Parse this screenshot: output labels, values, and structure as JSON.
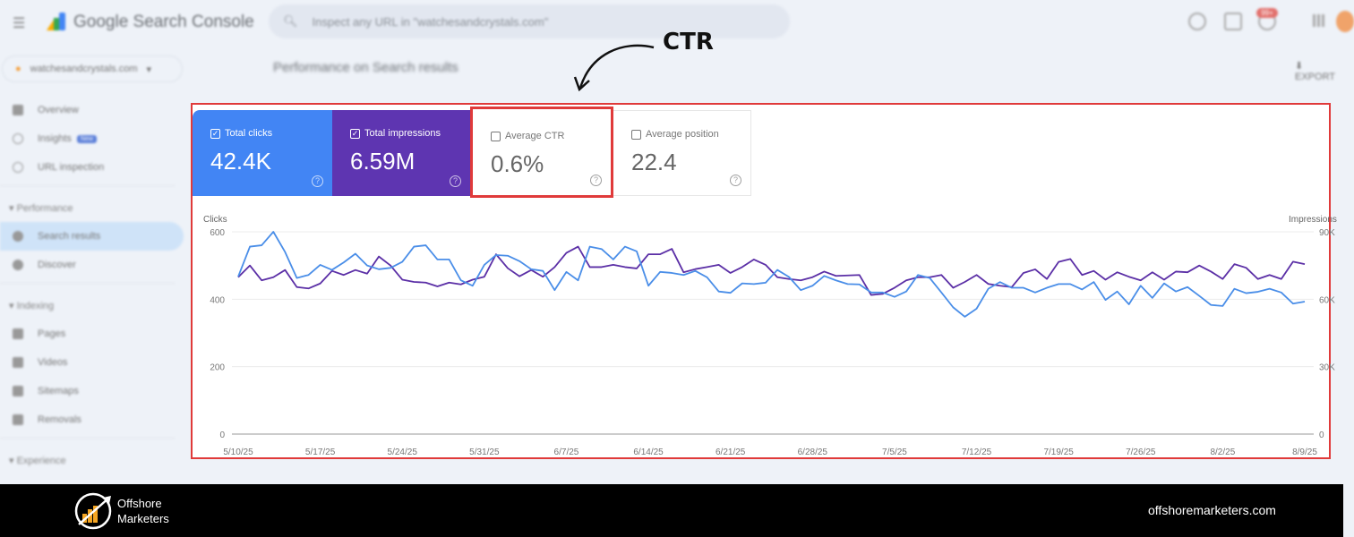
{
  "header": {
    "app_title": "Google Search Console",
    "search_placeholder": "Inspect any URL in \"watchesandcrystals.com\"",
    "notification_count": "99+"
  },
  "property": {
    "name": "watchesandcrystals.com"
  },
  "sidebar": {
    "items": [
      {
        "label": "Overview",
        "icon": "home-icon"
      },
      {
        "label": "Insights",
        "icon": "lightbulb-icon",
        "tag": "New"
      },
      {
        "label": "URL inspection",
        "icon": "search-icon"
      }
    ],
    "performance": {
      "title": "Performance",
      "items": [
        {
          "label": "Search results",
          "icon": "google-icon",
          "active": true
        },
        {
          "label": "Discover",
          "icon": "asterisk-icon"
        }
      ]
    },
    "indexing": {
      "title": "Indexing",
      "items": [
        {
          "label": "Pages",
          "icon": "pages-icon"
        },
        {
          "label": "Videos",
          "icon": "video-icon"
        },
        {
          "label": "Sitemaps",
          "icon": "sitemap-icon"
        },
        {
          "label": "Removals",
          "icon": "eye-off-icon"
        }
      ]
    },
    "experience": {
      "title": "Experience"
    }
  },
  "page": {
    "title": "Performance on Search results",
    "export_label": "EXPORT"
  },
  "metrics": [
    {
      "label": "Total clicks",
      "value": "42.4K",
      "checked": true,
      "color": "#4285f4"
    },
    {
      "label": "Total impressions",
      "value": "6.59M",
      "checked": true,
      "color": "#5e35b1"
    },
    {
      "label": "Average CTR",
      "value": "0.6%",
      "checked": false
    },
    {
      "label": "Average position",
      "value": "22.4",
      "checked": false
    }
  ],
  "annotation": {
    "text": "CTR",
    "highlight_color": "#e03a3a"
  },
  "chart_data": {
    "type": "line",
    "left_axis_label": "Clicks",
    "right_axis_label": "Impressions",
    "left_ylim": [
      0,
      600
    ],
    "left_ticks": [
      "0",
      "200",
      "400",
      "600"
    ],
    "right_ylim": [
      0,
      90000
    ],
    "right_ticks": [
      "0",
      "30K",
      "60K",
      "90K"
    ],
    "x_start": "5/10/25",
    "x_end": "8/9/25",
    "x_ticks": [
      "5/10/25",
      "5/17/25",
      "5/24/25",
      "5/31/25",
      "6/7/25",
      "6/14/25",
      "6/21/25",
      "6/28/25",
      "7/5/25",
      "7/12/25",
      "7/19/25",
      "7/26/25",
      "8/2/25",
      "8/9/25"
    ],
    "grid": true,
    "series": [
      {
        "name": "Clicks",
        "axis": "left",
        "color": "#4a8ee8",
        "values": [
          467,
          556,
          560,
          600,
          540,
          463,
          472,
          502,
          487,
          509,
          535,
          500,
          489,
          493,
          511,
          556,
          560,
          518,
          518,
          456,
          440,
          502,
          531,
          529,
          513,
          489,
          484,
          427,
          481,
          456,
          556,
          549,
          518,
          556,
          542,
          440,
          481,
          478,
          472,
          484,
          465,
          423,
          419,
          447,
          445,
          449,
          487,
          466,
          427,
          440,
          469,
          456,
          445,
          444,
          420,
          420,
          407,
          423,
          472,
          463,
          420,
          376,
          348,
          372,
          431,
          451,
          434,
          434,
          420,
          434,
          445,
          445,
          429,
          451,
          398,
          423,
          385,
          440,
          404,
          447,
          423,
          436,
          410,
          383,
          380,
          431,
          418,
          422,
          431,
          420,
          387,
          393
        ]
      },
      {
        "name": "Impressions",
        "axis": "right",
        "color": "#5b2fa6",
        "values": [
          69800,
          75000,
          68400,
          69800,
          73000,
          65400,
          64800,
          67000,
          72600,
          70800,
          73000,
          71400,
          79000,
          75000,
          68700,
          67700,
          67400,
          65700,
          67400,
          66600,
          68700,
          70000,
          80000,
          73800,
          70200,
          73000,
          70000,
          74300,
          80600,
          83400,
          74300,
          74300,
          75300,
          74300,
          73700,
          80000,
          80000,
          82400,
          72000,
          73400,
          74300,
          75300,
          71700,
          74300,
          77700,
          75300,
          69800,
          69000,
          68400,
          69800,
          72300,
          70400,
          70600,
          70800,
          61900,
          62400,
          65100,
          68400,
          69800,
          69800,
          70800,
          65100,
          67700,
          70800,
          66800,
          66000,
          65400,
          71700,
          73300,
          69000,
          76600,
          77900,
          70800,
          72600,
          68700,
          72000,
          70000,
          68400,
          72000,
          68700,
          72300,
          72000,
          75000,
          72300,
          69000,
          75600,
          74000,
          69000,
          70800,
          69000,
          76700,
          75600
        ]
      }
    ]
  },
  "footer": {
    "brand_line1": "Offshore",
    "brand_line2": "Marketers",
    "website": "offshoremarketers.com"
  }
}
